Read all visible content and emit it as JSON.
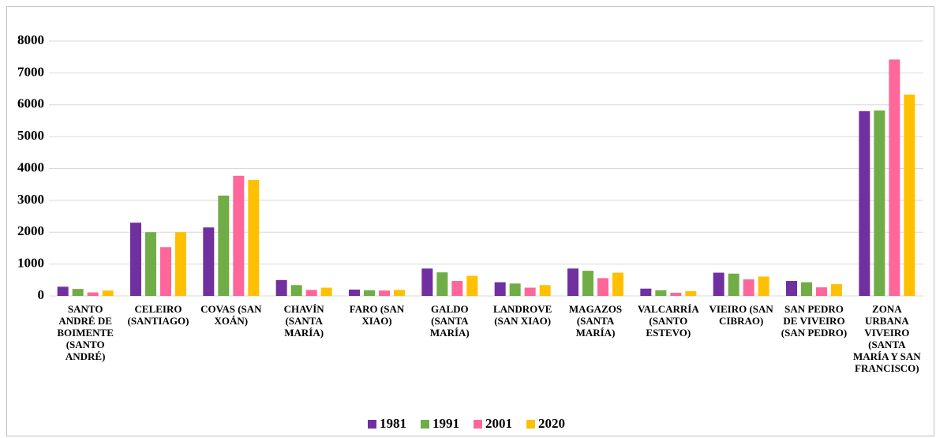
{
  "chart_data": {
    "type": "bar",
    "categories": [
      "SANTO ANDRÉ DE BOIMENTE (SANTO ANDRÉ)",
      "CELEIRO (SANTIAGO)",
      "COVAS (SAN XOÁN)",
      "CHAVÍN (SANTA MARÍA)",
      "FARO (SAN XIAO)",
      "GALDO (SANTA MARÍA)",
      "LANDROVE (SAN XIAO)",
      "MAGAZOS (SANTA MARÍA)",
      "VALCARRÍA (SANTO ESTEVO)",
      "VIEIRO (SAN CIBRAO)",
      "SAN PEDRO DE VIVEIRO (SAN PEDRO)",
      "ZONA URBANA VIVEIRO (SANTA MARÍA Y SAN FRANCISCO)"
    ],
    "series": [
      {
        "name": "1981",
        "color": "#7030a0",
        "values": [
          290,
          2300,
          2150,
          500,
          200,
          860,
          430,
          860,
          230,
          730,
          470,
          5800
        ]
      },
      {
        "name": "1991",
        "color": "#70ad47",
        "values": [
          220,
          2000,
          3150,
          340,
          180,
          740,
          390,
          790,
          180,
          700,
          430,
          5820
        ]
      },
      {
        "name": "2001",
        "color": "#ff6699",
        "values": [
          110,
          1530,
          3770,
          190,
          170,
          470,
          260,
          560,
          100,
          520,
          270,
          7420
        ]
      },
      {
        "name": "2020",
        "color": "#ffc000",
        "values": [
          170,
          2000,
          3640,
          260,
          190,
          630,
          340,
          730,
          150,
          610,
          370,
          6320
        ]
      }
    ],
    "ylim": [
      0,
      8000
    ],
    "yticks": [
      0,
      1000,
      2000,
      3000,
      4000,
      5000,
      6000,
      7000,
      8000
    ],
    "grid": true,
    "legend": "bottom"
  }
}
